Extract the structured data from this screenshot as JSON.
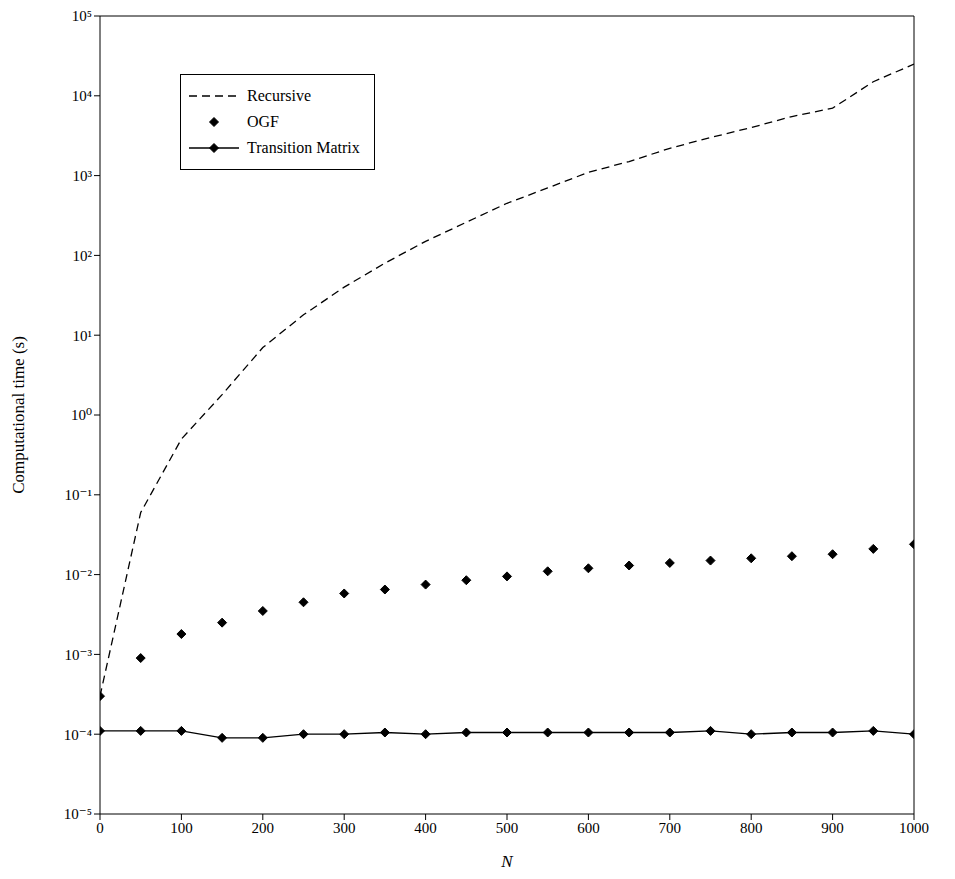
{
  "chart_data": {
    "type": "line",
    "x_label": "N",
    "y_label": "Computational time (s)",
    "log": "y",
    "grid": false,
    "legend": "top-left",
    "x": [
      0,
      50,
      100,
      150,
      200,
      250,
      300,
      350,
      400,
      450,
      500,
      550,
      600,
      650,
      700,
      750,
      800,
      850,
      900,
      950,
      1000
    ],
    "xlim": [
      0,
      1000
    ],
    "xticks": [
      0,
      100,
      200,
      300,
      400,
      500,
      600,
      700,
      800,
      900,
      1000
    ],
    "ylim": [
      1e-05,
      100000
    ],
    "yticks": [
      {
        "value": 1e-05,
        "label": "10⁻⁵"
      },
      {
        "value": 0.0001,
        "label": "10⁻⁴"
      },
      {
        "value": 0.001,
        "label": "10⁻³"
      },
      {
        "value": 0.01,
        "label": "10⁻²"
      },
      {
        "value": 0.1,
        "label": "10⁻¹"
      },
      {
        "value": 1,
        "label": "10⁰"
      },
      {
        "value": 10,
        "label": "10¹"
      },
      {
        "value": 100,
        "label": "10²"
      },
      {
        "value": 1000,
        "label": "10³"
      },
      {
        "value": 10000,
        "label": "10⁴"
      },
      {
        "value": 100000,
        "label": "10⁵"
      }
    ],
    "series": [
      {
        "name": "Recursive",
        "color": "#000000",
        "line_style": "dashed",
        "marker": "none",
        "values": [
          0.0003,
          0.06,
          0.5,
          1.8,
          7,
          18,
          40,
          80,
          150,
          260,
          450,
          700,
          1100,
          1500,
          2200,
          3000,
          4000,
          5500,
          7000,
          15000,
          25000
        ]
      },
      {
        "name": "OGF",
        "color": "#000000",
        "line_style": "none",
        "marker": "diamond",
        "values": [
          0.0003,
          0.0009,
          0.0018,
          0.0025,
          0.0035,
          0.0045,
          0.0058,
          0.0065,
          0.0075,
          0.0085,
          0.0095,
          0.011,
          0.012,
          0.013,
          0.014,
          0.015,
          0.016,
          0.017,
          0.018,
          0.021,
          0.024
        ]
      },
      {
        "name": "Transition Matrix",
        "color": "#000000",
        "line_style": "solid",
        "marker": "diamond",
        "values": [
          0.00011,
          0.00011,
          0.00011,
          9e-05,
          9e-05,
          0.0001,
          0.0001,
          0.000105,
          0.0001,
          0.000105,
          0.000105,
          0.000105,
          0.000105,
          0.000105,
          0.000105,
          0.00011,
          0.0001,
          0.000105,
          0.000105,
          0.00011,
          0.0001
        ]
      }
    ]
  }
}
